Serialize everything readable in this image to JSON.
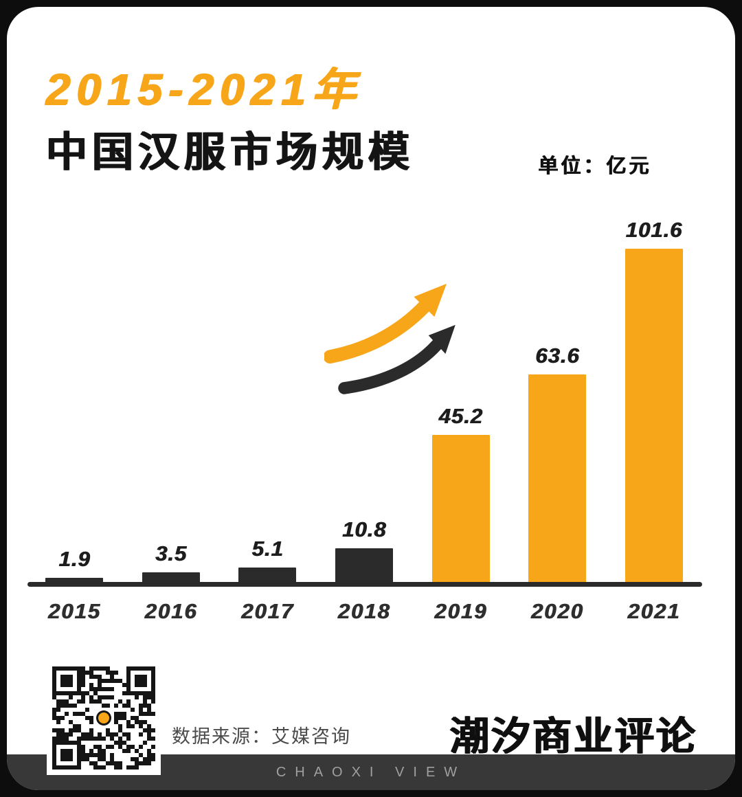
{
  "header": {
    "title_line1": "2015-2021年",
    "title_line2": "中国汉服市场规模",
    "unit_label": "单位：亿元"
  },
  "chart_data": {
    "type": "bar",
    "title": "2015-2021年中国汉服市场规模",
    "unit": "亿元",
    "categories": [
      "2015",
      "2016",
      "2017",
      "2018",
      "2019",
      "2020",
      "2021"
    ],
    "values": [
      1.9,
      3.5,
      5.1,
      10.8,
      45.2,
      63.6,
      101.6
    ],
    "bar_colors": [
      "#2b2b2b",
      "#2b2b2b",
      "#2b2b2b",
      "#2b2b2b",
      "#F8A619",
      "#F8A619",
      "#F8A619"
    ],
    "ylim": [
      0,
      110
    ],
    "data_labels": true,
    "legend": false,
    "grid": false,
    "annotation": "growth-arrow"
  },
  "footer": {
    "source_label": "数据来源：艾媒咨询",
    "brand": "潮汐商业评论",
    "tagline": "CHAOXI VIEW"
  },
  "colors": {
    "accent": "#F8A619",
    "dark_bar": "#2b2b2b",
    "footer_bar": "#383838",
    "card_background": "#ffffff",
    "page_background": "#0d0d0d"
  }
}
